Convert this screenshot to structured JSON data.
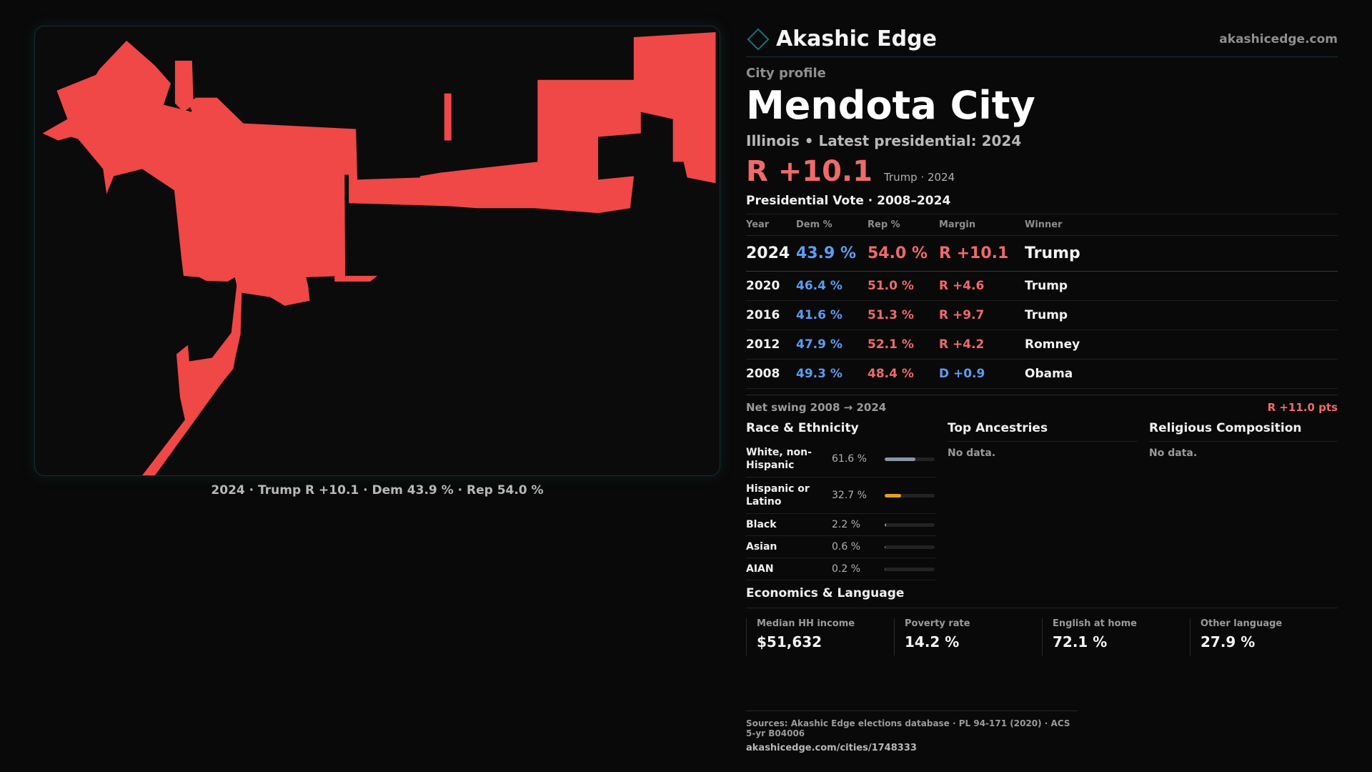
{
  "brand": {
    "name": "Akashic Edge",
    "site": "akashicedge.com",
    "accent": "#1b6f78"
  },
  "profile": {
    "eyebrow": "City profile",
    "title": "Mendota City",
    "subtitle": "Illinois • Latest presidential: 2024",
    "headline_margin": "R +10.1",
    "headline_note": "Trump · 2024"
  },
  "map": {
    "caption": "2024 · Trump R +10.1 · Dem 43.9 % · Rep 54.0 %",
    "fill_color": "#f04747"
  },
  "votes": {
    "title": "Presidential Vote · 2008–2024",
    "headers": {
      "year": "Year",
      "dem": "Dem %",
      "rep": "Rep %",
      "margin": "Margin",
      "winner": "Winner"
    },
    "rows": [
      {
        "year": "2024",
        "dem": "43.9 %",
        "rep": "54.0 %",
        "margin": "R +10.1",
        "party": "rep",
        "winner": "Trump"
      },
      {
        "year": "2020",
        "dem": "46.4 %",
        "rep": "51.0 %",
        "margin": "R +4.6",
        "party": "rep",
        "winner": "Trump"
      },
      {
        "year": "2016",
        "dem": "41.6 %",
        "rep": "51.3 %",
        "margin": "R +9.7",
        "party": "rep",
        "winner": "Trump"
      },
      {
        "year": "2012",
        "dem": "47.9 %",
        "rep": "52.1 %",
        "margin": "R +4.2",
        "party": "rep",
        "winner": "Romney"
      },
      {
        "year": "2008",
        "dem": "49.3 %",
        "rep": "48.4 %",
        "margin": "D +0.9",
        "party": "dem",
        "winner": "Obama"
      }
    ],
    "swing_label": "Net swing 2008 → 2024",
    "swing_value": "R +11.0 pts"
  },
  "race": {
    "title": "Race & Ethnicity",
    "items": [
      {
        "label": "White, non-Hispanic",
        "value": "61.6 %",
        "pct": 61.6,
        "color": "#8a95a5"
      },
      {
        "label": "Hispanic or Latino",
        "value": "32.7 %",
        "pct": 32.7,
        "color": "#e0a21c"
      },
      {
        "label": "Black",
        "value": "2.2 %",
        "pct": 2.2,
        "color": "#8b7be0"
      },
      {
        "label": "Asian",
        "value": "0.6 %",
        "pct": 0.6,
        "color": "#3bb4a8"
      },
      {
        "label": "AIAN",
        "value": "0.2 %",
        "pct": 0.2,
        "color": "#6a6a6a"
      }
    ]
  },
  "ancestries": {
    "title": "Top Ancestries",
    "empty": "No data."
  },
  "religion": {
    "title": "Religious Composition",
    "empty": "No data."
  },
  "economics": {
    "title": "Economics & Language",
    "stats": [
      {
        "label": "Median HH income",
        "value": "$51,632"
      },
      {
        "label": "Poverty rate",
        "value": "14.2 %"
      },
      {
        "label": "English at home",
        "value": "72.1 %"
      },
      {
        "label": "Other language",
        "value": "27.9 %"
      }
    ]
  },
  "sources": {
    "text": "Sources: Akashic Edge elections database · PL 94-171 (2020) · ACS 5-yr B04006",
    "url": "akashicedge.com/cities/1748333"
  }
}
